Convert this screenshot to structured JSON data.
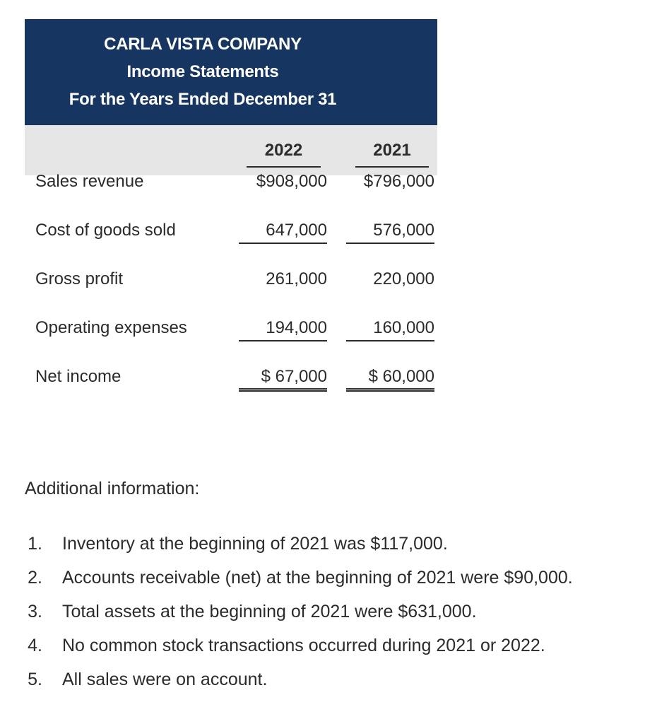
{
  "header": {
    "company": "CARLA VISTA COMPANY",
    "statement": "Income Statements",
    "period": "For the Years Ended December 31"
  },
  "years": [
    "2022",
    "2021"
  ],
  "rows": [
    {
      "label": "Sales revenue",
      "y2022": "$908,000",
      "y2021": "$796,000"
    },
    {
      "label": "Cost of goods sold",
      "y2022": "647,000",
      "y2021": "576,000"
    },
    {
      "label": "Gross profit",
      "y2022": "261,000",
      "y2021": "220,000"
    },
    {
      "label": "Operating expenses",
      "y2022": "194,000",
      "y2021": "160,000"
    },
    {
      "label": "Net income",
      "y2022": "$ 67,000",
      "y2021": "$ 60,000"
    }
  ],
  "additional": {
    "title": "Additional information:",
    "items": [
      {
        "num": "1.",
        "text": "Inventory at the beginning of 2021 was $117,000."
      },
      {
        "num": "2.",
        "text": "Accounts receivable (net) at the beginning of 2021 were $90,000."
      },
      {
        "num": "3.",
        "text": "Total assets at the beginning of 2021 were $631,000."
      },
      {
        "num": "4.",
        "text": "No common stock transactions occurred during 2021 or 2022."
      },
      {
        "num": "5.",
        "text": "All sales were on account."
      }
    ]
  }
}
